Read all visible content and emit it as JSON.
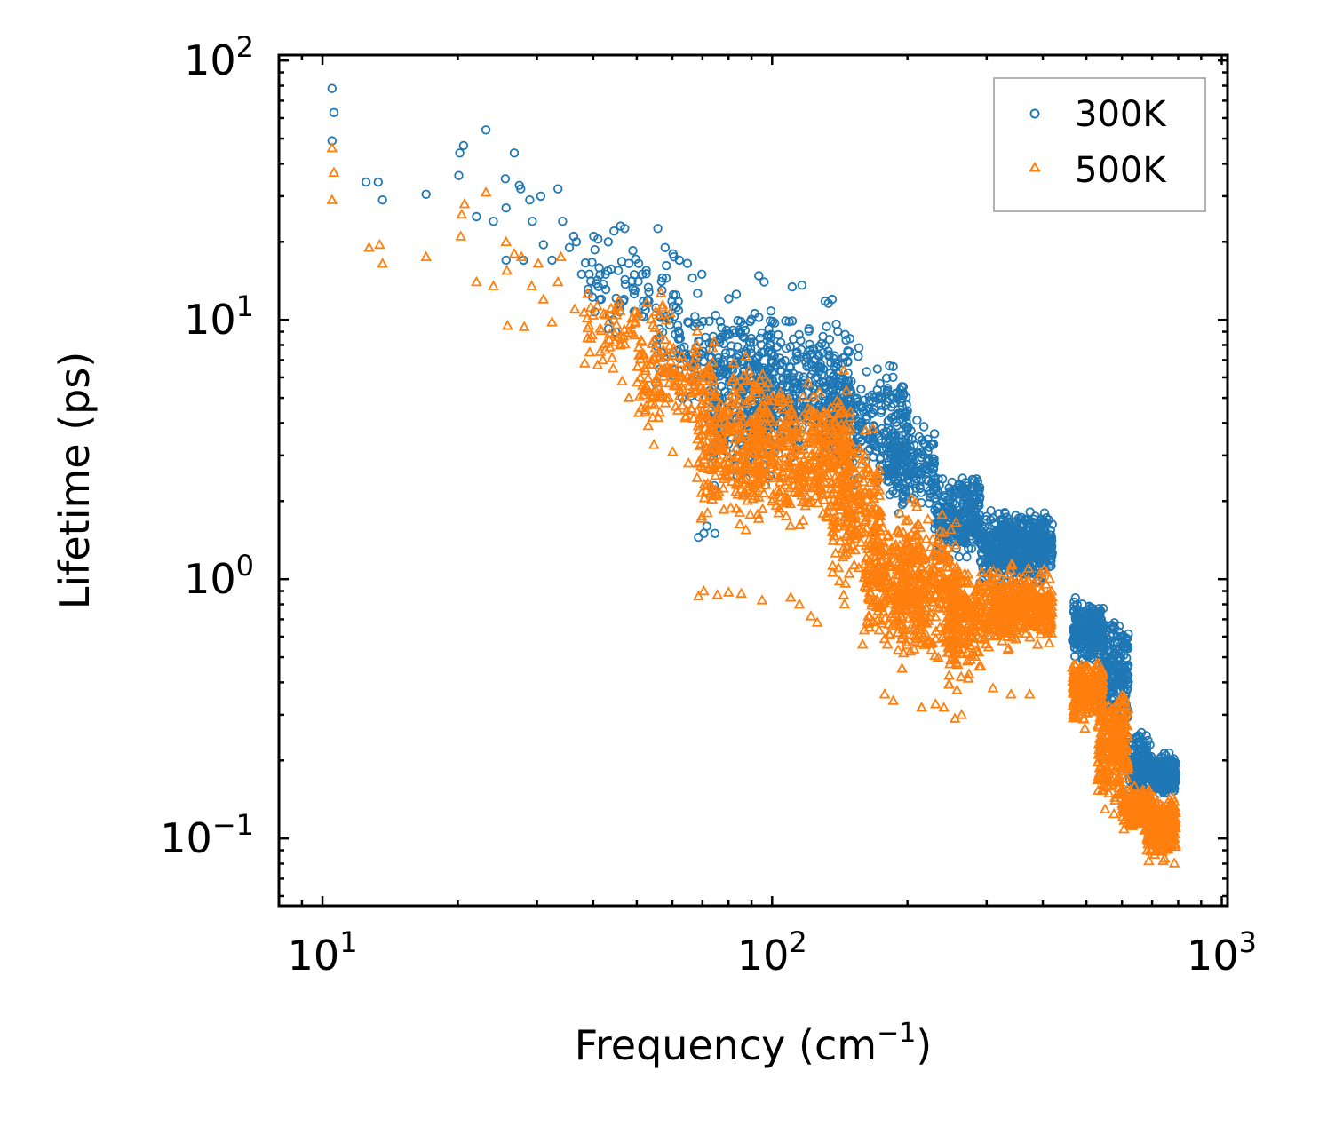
{
  "chart_data": {
    "type": "scatter",
    "title": "",
    "xlabel": "Frequency (cm",
    "xlabel_sup": "−1",
    "xlabel_end": ")",
    "ylabel": "Lifetime (ps)",
    "xscale": "log",
    "yscale": "log",
    "xlim": [
      8,
      1030
    ],
    "ylim": [
      0.055,
      105
    ],
    "legend_position": "top-right",
    "x_ticks": [
      {
        "value": 10,
        "base": "10",
        "exp": "1"
      },
      {
        "value": 100,
        "base": "10",
        "exp": "2"
      },
      {
        "value": 1000,
        "base": "10",
        "exp": "3"
      }
    ],
    "y_ticks": [
      {
        "value": 0.1,
        "base": "10",
        "exp": "−1"
      },
      {
        "value": 1,
        "base": "10",
        "exp": "0"
      },
      {
        "value": 10,
        "base": "10",
        "exp": "1"
      },
      {
        "value": 100,
        "base": "10",
        "exp": "2"
      }
    ],
    "series": [
      {
        "name": "300K",
        "marker": "circle",
        "color": "#1f77b4",
        "isolated_points": [
          [
            10.5,
            78
          ],
          [
            10.6,
            63
          ],
          [
            10.5,
            49
          ],
          [
            12.5,
            34
          ],
          [
            13.3,
            34
          ],
          [
            13.6,
            29
          ],
          [
            17,
            30.5
          ],
          [
            20.2,
            44
          ],
          [
            20.6,
            47
          ],
          [
            20.1,
            36
          ],
          [
            22,
            25
          ],
          [
            23.1,
            54
          ],
          [
            24,
            24
          ],
          [
            25.5,
            35
          ],
          [
            25.6,
            27
          ],
          [
            25.6,
            17
          ],
          [
            26.7,
            44
          ],
          [
            27.4,
            33
          ],
          [
            27.6,
            32
          ],
          [
            28,
            17
          ],
          [
            28.9,
            29
          ],
          [
            29.3,
            24
          ],
          [
            30.6,
            30
          ],
          [
            31,
            19.5
          ],
          [
            32.4,
            17
          ],
          [
            33.4,
            32
          ],
          [
            34.2,
            24
          ],
          [
            35.4,
            19
          ],
          [
            36.2,
            21
          ],
          [
            36.7,
            20
          ],
          [
            37.7,
            15
          ],
          [
            39.2,
            15
          ],
          [
            40.1,
            21
          ],
          [
            41,
            20.5
          ],
          [
            42.6,
            15
          ],
          [
            43.2,
            20
          ],
          [
            44.5,
            22
          ],
          [
            46,
            23
          ],
          [
            47,
            22.5
          ],
          [
            48,
            16.5
          ],
          [
            49,
            18.5
          ],
          [
            50.5,
            16.5
          ],
          [
            52.5,
            15.5
          ],
          [
            55.7,
            22.5
          ],
          [
            57.8,
            19
          ],
          [
            60.5,
            17.5
          ],
          [
            62.2,
            17
          ],
          [
            64.8,
            16.5
          ],
          [
            66.5,
            14.5
          ],
          [
            69.8,
            15
          ],
          [
            68.6,
            1.45
          ],
          [
            70.5,
            1.5
          ],
          [
            71.6,
            1.6
          ],
          [
            74.6,
            1.5
          ],
          [
            93.4,
            14.8
          ],
          [
            96,
            14
          ],
          [
            110.8,
            13.4
          ],
          [
            116.5,
            13.6
          ],
          [
            131.2,
            11.8
          ],
          [
            136,
            12
          ],
          [
            156,
            7.8
          ],
          [
            180,
            5.2
          ],
          [
            199,
            4.7
          ],
          [
            210,
            4.1
          ],
          [
            222,
            3.1
          ]
        ],
        "clusters": [
          {
            "x_range": [
              38,
              62
            ],
            "y_range": [
              8,
              20
            ],
            "count": 70
          },
          {
            "x_range": [
              55,
              90
            ],
            "y_range": [
              4,
              15
            ],
            "count": 140
          },
          {
            "x_range": [
              72,
              100
            ],
            "y_range": [
              1.8,
              12
            ],
            "count": 220
          },
          {
            "x_range": [
              90,
              150
            ],
            "y_range": [
              2.5,
              12.5
            ],
            "count": 380
          },
          {
            "x_range": [
              130,
              200
            ],
            "y_range": [
              2,
              8
            ],
            "count": 260
          },
          {
            "x_range": [
              180,
              230
            ],
            "y_range": [
              1.6,
              4.5
            ],
            "count": 200
          },
          {
            "x_range": [
              230,
              290
            ],
            "y_range": [
              1.1,
              2.9
            ],
            "count": 260
          },
          {
            "x_range": [
              290,
              335
            ],
            "y_range": [
              0.9,
              1.9
            ],
            "count": 180
          },
          {
            "x_range": [
              320,
              420
            ],
            "y_range": [
              0.9,
              2.0
            ],
            "count": 420
          },
          {
            "x_range": [
              465,
              545
            ],
            "y_range": [
              0.45,
              0.88
            ],
            "count": 260
          },
          {
            "x_range": [
              540,
              620
            ],
            "y_range": [
              0.25,
              0.8
            ],
            "count": 220
          },
          {
            "x_range": [
              620,
              700
            ],
            "y_range": [
              0.13,
              0.28
            ],
            "count": 180
          },
          {
            "x_range": [
              700,
              790
            ],
            "y_range": [
              0.14,
              0.22
            ],
            "count": 260
          }
        ]
      },
      {
        "name": "500K",
        "marker": "triangle",
        "color": "#ff7f0e",
        "isolated_points": [
          [
            10.5,
            46
          ],
          [
            10.6,
            37
          ],
          [
            10.5,
            29
          ],
          [
            12.7,
            19
          ],
          [
            13.4,
            19.5
          ],
          [
            13.6,
            16.5
          ],
          [
            17,
            17.5
          ],
          [
            20.3,
            21
          ],
          [
            20.4,
            25.5
          ],
          [
            20.7,
            28
          ],
          [
            22,
            14
          ],
          [
            23.1,
            31
          ],
          [
            24,
            13.5
          ],
          [
            25.6,
            20
          ],
          [
            25.7,
            15.5
          ],
          [
            25.8,
            9.5
          ],
          [
            26.7,
            18
          ],
          [
            27.7,
            17.5
          ],
          [
            28.1,
            9.4
          ],
          [
            29.2,
            13.5
          ],
          [
            30.2,
            16.5
          ],
          [
            31,
            12
          ],
          [
            32.4,
            9.8
          ],
          [
            33.4,
            14
          ],
          [
            33.9,
            17.5
          ],
          [
            36.4,
            11
          ],
          [
            38.3,
            6.8
          ],
          [
            39.3,
            7.5
          ],
          [
            42,
            7
          ],
          [
            44.3,
            6.5
          ],
          [
            46.4,
            5.8
          ],
          [
            48,
            5
          ],
          [
            52.1,
            4.4
          ],
          [
            53,
            3.9
          ],
          [
            54.6,
            3.3
          ],
          [
            60.1,
            3.1
          ],
          [
            65.2,
            2.8
          ],
          [
            68.6,
            0.86
          ],
          [
            70.5,
            0.9
          ],
          [
            75.6,
            0.87
          ],
          [
            80,
            0.89
          ],
          [
            85.4,
            0.88
          ],
          [
            95,
            0.83
          ],
          [
            110,
            0.85
          ],
          [
            115,
            0.8
          ],
          [
            122,
            0.72
          ],
          [
            126,
            0.68
          ],
          [
            159,
            0.56
          ],
          [
            178,
            0.36
          ],
          [
            186,
            0.34
          ],
          [
            215,
            0.32
          ],
          [
            231,
            0.33
          ],
          [
            241,
            0.32
          ],
          [
            255,
            0.29
          ],
          [
            264,
            0.3
          ],
          [
            310,
            0.38
          ],
          [
            340,
            0.36
          ],
          [
            374,
            0.36
          ]
        ],
        "clusters": [
          {
            "x_range": [
              38,
              60
            ],
            "y_range": [
              6,
              14
            ],
            "count": 70
          },
          {
            "x_range": [
              50,
              75
            ],
            "y_range": [
              3.5,
              10
            ],
            "count": 140
          },
          {
            "x_range": [
              68,
              95
            ],
            "y_range": [
              1.3,
              8.5
            ],
            "count": 260
          },
          {
            "x_range": [
              90,
              150
            ],
            "y_range": [
              1.4,
              7.2
            ],
            "count": 440
          },
          {
            "x_range": [
              135,
              175
            ],
            "y_range": [
              0.75,
              4.5
            ],
            "count": 220
          },
          {
            "x_range": [
              160,
              215
            ],
            "y_range": [
              0.45,
              2.3
            ],
            "count": 260
          },
          {
            "x_range": [
              190,
              260
            ],
            "y_range": [
              0.38,
              2.1
            ],
            "count": 300
          },
          {
            "x_range": [
              245,
              300
            ],
            "y_range": [
              0.33,
              1.3
            ],
            "count": 220
          },
          {
            "x_range": [
              300,
              420
            ],
            "y_range": [
              0.5,
              1.2
            ],
            "count": 380
          },
          {
            "x_range": [
              465,
              545
            ],
            "y_range": [
              0.26,
              0.53
            ],
            "count": 230
          },
          {
            "x_range": [
              530,
              620
            ],
            "y_range": [
              0.12,
              0.44
            ],
            "count": 260
          },
          {
            "x_range": [
              600,
              700
            ],
            "y_range": [
              0.1,
              0.17
            ],
            "count": 180
          },
          {
            "x_range": [
              680,
              790
            ],
            "y_range": [
              0.078,
              0.155
            ],
            "count": 300
          }
        ]
      }
    ]
  }
}
